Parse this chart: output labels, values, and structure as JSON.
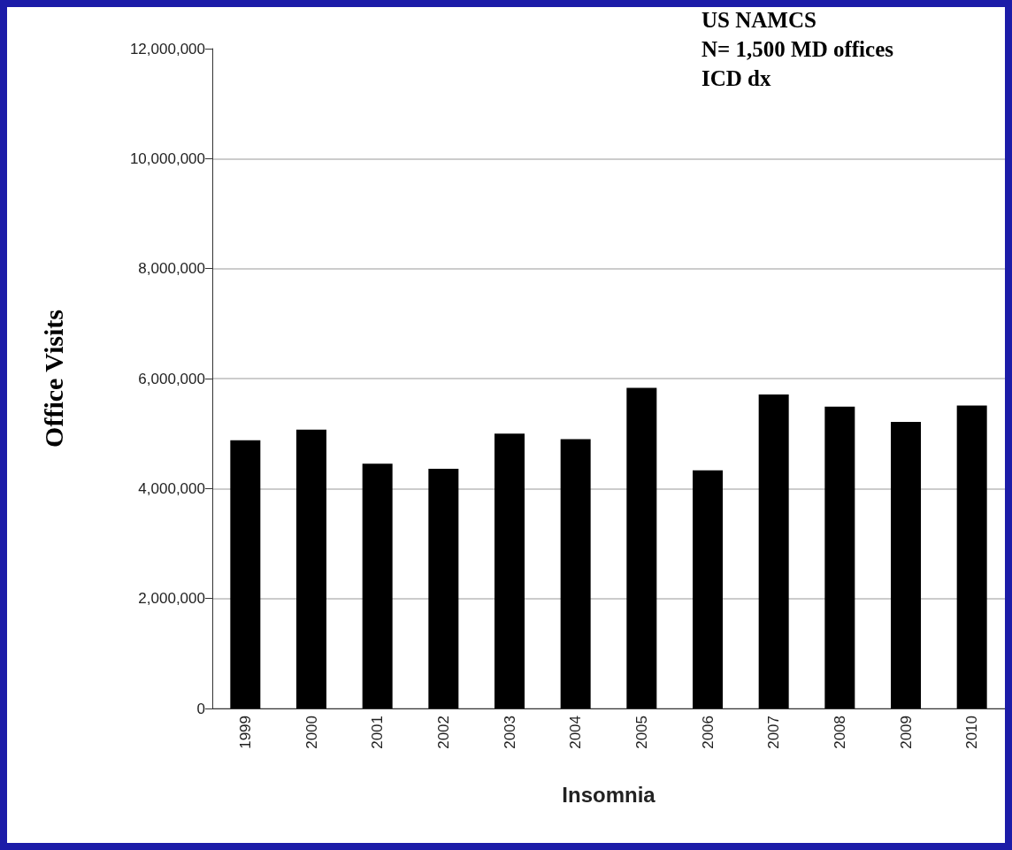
{
  "chart_data": {
    "type": "bar",
    "xlabel": "Insomnia",
    "ylabel": "Office Visits",
    "categories": [
      "1999",
      "2000",
      "2001",
      "2002",
      "2003",
      "2004",
      "2005",
      "2006",
      "2007",
      "2008",
      "2009",
      "2010"
    ],
    "values": [
      4880000,
      5070000,
      4450000,
      4360000,
      5000000,
      4900000,
      5830000,
      4330000,
      5710000,
      5490000,
      5210000,
      5510000
    ],
    "color": "#000000",
    "ylim": [
      0,
      12000000
    ],
    "yticks": [
      {
        "value": 0,
        "label": "0"
      },
      {
        "value": 2000000,
        "label": "2,000,000"
      },
      {
        "value": 4000000,
        "label": "4,000,000"
      },
      {
        "value": 6000000,
        "label": "6,000,000"
      },
      {
        "value": 8000000,
        "label": "8,000,000"
      },
      {
        "value": 10000000,
        "label": "10,000,000"
      },
      {
        "value": 12000000,
        "label": "12,000,000"
      }
    ],
    "grid": "y",
    "annotations": [
      "US NAMCS",
      "N= 1,500 MD offices",
      "ICD dx"
    ]
  }
}
